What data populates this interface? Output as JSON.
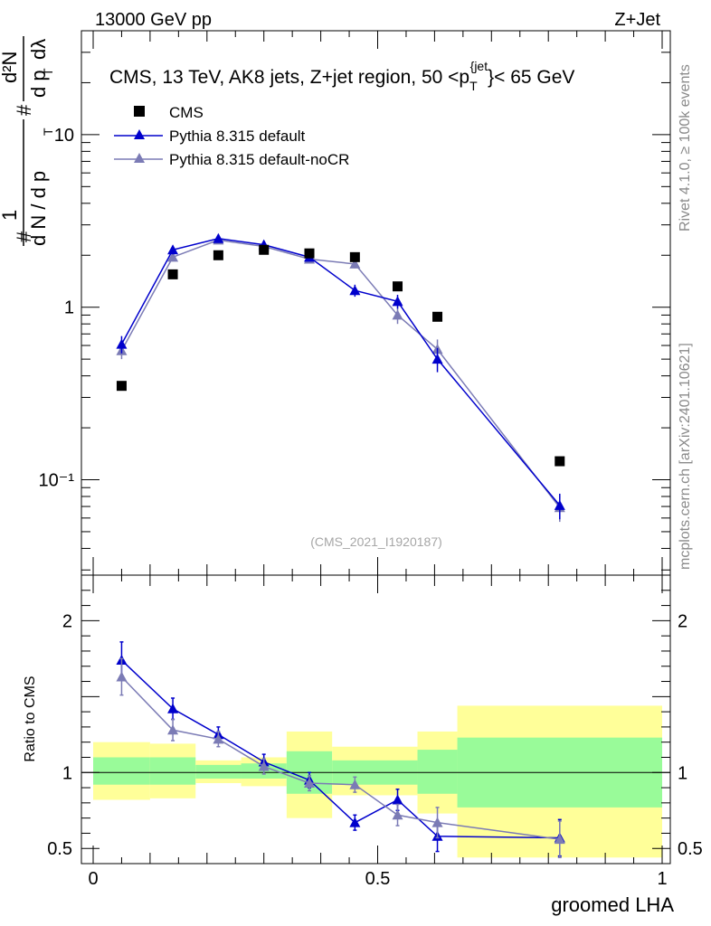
{
  "header": {
    "left": "13000 GeV pp",
    "right": "Z+Jet"
  },
  "side_text": {
    "rivet": "Rivet 4.1.0, ≥ 100k events",
    "mcplots": "mcplots.cern.ch [arXiv:2401.10621]"
  },
  "colors": {
    "cms": "#000000",
    "default": "#0000cc",
    "nocr": "#7b7bb5",
    "band_stat": "#99fb99",
    "band_tot": "#ffff99"
  },
  "chart_data": [
    {
      "type": "scatter",
      "panel": "main",
      "title": "CMS, 13 TeV, AK8 jets, Z+jet region, 50 <p_T^{jet}< 65 GeV",
      "title_parts": {
        "pre": "CMS, 13 TeV, AK8 jets, Z+jet region, 50 <p",
        "sub": "T",
        "sup": "{jet",
        "close": "}",
        "post": "< 65 GeV"
      },
      "ylabel": "1/(dN/dp_T) d²N/(dp_T dλ)",
      "ylabel_parts": {
        "hash1": "#",
        "one": "1",
        "dn": "d N / d p",
        "sub": "T",
        "hash2": "#",
        "dp": "d p",
        "sub2": "T",
        "d2n": "d²N",
        "dl": "dλ"
      },
      "yscale": "log",
      "ylim": [
        0.028,
        40
      ],
      "xlim": [
        -0.02,
        1.0
      ],
      "y_ticks": [
        {
          "value": 0.1,
          "label": "10⁻¹"
        },
        {
          "value": 1,
          "label": "1"
        },
        {
          "value": 10,
          "label": "10"
        }
      ],
      "legend_position": "top-left",
      "watermark": "(CMS_2021_I1920187)",
      "series": [
        {
          "name": "CMS",
          "marker": "square",
          "x": [
            0.05,
            0.14,
            0.22,
            0.3,
            0.38,
            0.46,
            0.535,
            0.605,
            0.82
          ],
          "y": [
            0.35,
            1.55,
            2.0,
            2.15,
            2.05,
            1.95,
            1.32,
            0.88,
            0.128
          ]
        },
        {
          "name": "Pythia 8.315 default",
          "marker": "triangle",
          "x": [
            0.05,
            0.14,
            0.22,
            0.3,
            0.38,
            0.46,
            0.535,
            0.605,
            0.82
          ],
          "y": [
            0.61,
            2.15,
            2.5,
            2.3,
            1.95,
            1.25,
            1.08,
            0.5,
            0.071
          ],
          "err": [
            0.07,
            0.12,
            0.12,
            0.12,
            0.1,
            0.1,
            0.1,
            0.08,
            0.012
          ]
        },
        {
          "name": "Pythia 8.315 default-noCR",
          "marker": "triangle",
          "x": [
            0.05,
            0.14,
            0.22,
            0.3,
            0.38,
            0.46,
            0.535,
            0.605,
            0.82
          ],
          "y": [
            0.56,
            1.95,
            2.45,
            2.25,
            1.9,
            1.78,
            0.9,
            0.57,
            0.069
          ],
          "err": [
            0.06,
            0.1,
            0.12,
            0.12,
            0.1,
            0.1,
            0.1,
            0.08,
            0.012
          ]
        }
      ]
    },
    {
      "type": "line",
      "panel": "ratio",
      "ylabel": "Ratio to CMS",
      "xlabel": "groomed LHA",
      "ylim": [
        0.4,
        2.3
      ],
      "xlim": [
        -0.02,
        1.0
      ],
      "y_ticks": [
        {
          "value": 0.5,
          "label": "0.5"
        },
        {
          "value": 1,
          "label": "1"
        },
        {
          "value": 2,
          "label": "2"
        }
      ],
      "x_ticks": [
        {
          "value": 0,
          "label": "0"
        },
        {
          "value": 0.5,
          "label": "0.5"
        },
        {
          "value": 1,
          "label": "1"
        }
      ],
      "bands": [
        {
          "x0": 0.0,
          "x1": 0.1,
          "stat": [
            0.92,
            1.1
          ],
          "tot": [
            0.82,
            1.2
          ]
        },
        {
          "x0": 0.1,
          "x1": 0.18,
          "stat": [
            0.92,
            1.1
          ],
          "tot": [
            0.83,
            1.19
          ]
        },
        {
          "x0": 0.18,
          "x1": 0.26,
          "stat": [
            0.96,
            1.05
          ],
          "tot": [
            0.93,
            1.08
          ]
        },
        {
          "x0": 0.26,
          "x1": 0.34,
          "stat": [
            0.96,
            1.06
          ],
          "tot": [
            0.91,
            1.1
          ]
        },
        {
          "x0": 0.34,
          "x1": 0.42,
          "stat": [
            0.86,
            1.14
          ],
          "tot": [
            0.7,
            1.27
          ]
        },
        {
          "x0": 0.42,
          "x1": 0.5,
          "stat": [
            0.92,
            1.08
          ],
          "tot": [
            0.85,
            1.17
          ]
        },
        {
          "x0": 0.5,
          "x1": 0.57,
          "stat": [
            0.92,
            1.08
          ],
          "tot": [
            0.85,
            1.17
          ]
        },
        {
          "x0": 0.57,
          "x1": 0.64,
          "stat": [
            0.86,
            1.15
          ],
          "tot": [
            0.73,
            1.27
          ]
        },
        {
          "x0": 0.64,
          "x1": 1.0,
          "stat": [
            0.77,
            1.23
          ],
          "tot": [
            0.44,
            1.44
          ]
        }
      ],
      "series": [
        {
          "name": "Pythia 8.315 default",
          "x": [
            0.05,
            0.14,
            0.22,
            0.3,
            0.38,
            0.46,
            0.535,
            0.605,
            0.82
          ],
          "y": [
            1.74,
            1.42,
            1.25,
            1.07,
            0.95,
            0.67,
            0.82,
            0.58,
            0.57
          ],
          "err": [
            0.12,
            0.07,
            0.05,
            0.05,
            0.05,
            0.05,
            0.07,
            0.1,
            0.12
          ]
        },
        {
          "name": "Pythia 8.315 default-noCR",
          "x": [
            0.05,
            0.14,
            0.22,
            0.3,
            0.38,
            0.46,
            0.535,
            0.605,
            0.82
          ],
          "y": [
            1.63,
            1.28,
            1.22,
            1.04,
            0.93,
            0.92,
            0.72,
            0.67,
            0.56
          ],
          "err": [
            0.12,
            0.07,
            0.05,
            0.05,
            0.05,
            0.05,
            0.07,
            0.1,
            0.12
          ]
        }
      ]
    }
  ]
}
